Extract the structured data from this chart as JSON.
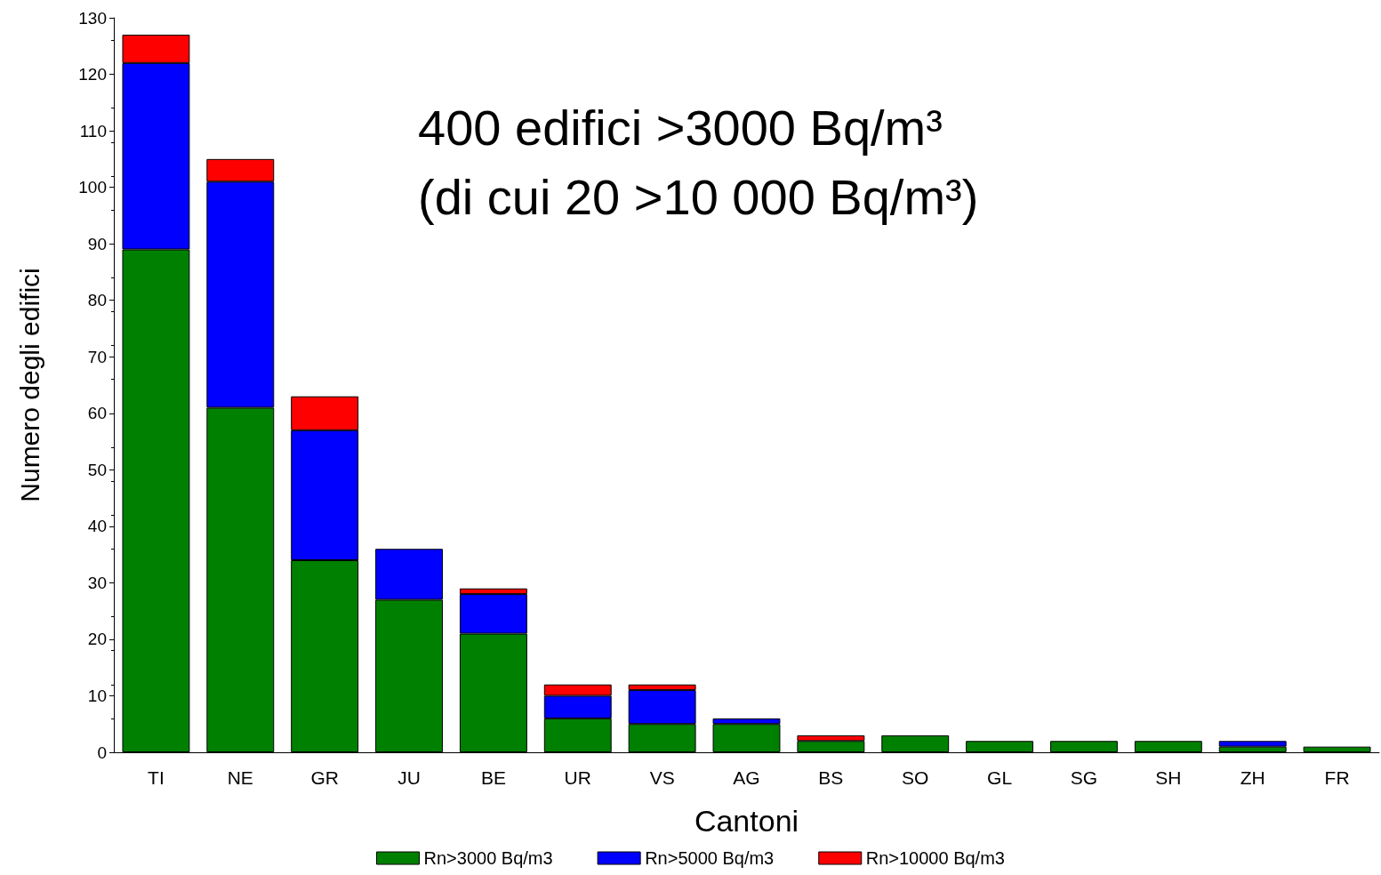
{
  "chart_data": {
    "type": "bar",
    "stacked": true,
    "xlabel": "Cantoni",
    "ylabel": "Numero degli edifici",
    "categories": [
      "TI",
      "NE",
      "GR",
      "JU",
      "BE",
      "UR",
      "VS",
      "AG",
      "BS",
      "SO",
      "GL",
      "SG",
      "SH",
      "ZH",
      "FR"
    ],
    "series": [
      {
        "name": "Rn>3000 Bq/m3",
        "color": "#008000",
        "values": [
          89,
          61,
          34,
          27,
          21,
          6,
          5,
          5,
          2,
          3,
          2,
          2,
          2,
          1,
          1
        ]
      },
      {
        "name": "Rn>5000 Bq/m3",
        "color": "#0000ff",
        "values": [
          33,
          40,
          23,
          9,
          7,
          4,
          6,
          1,
          0,
          0,
          0,
          0,
          0,
          1,
          0
        ]
      },
      {
        "name": "Rn>10000 Bq/m3",
        "color": "#ff0000",
        "values": [
          5,
          4,
          6,
          0,
          1,
          2,
          1,
          0,
          1,
          0,
          0,
          0,
          0,
          0,
          0
        ]
      }
    ],
    "ylim": [
      0,
      130
    ],
    "yticks": [
      0,
      10,
      20,
      30,
      40,
      50,
      60,
      70,
      80,
      90,
      100,
      110,
      120,
      130
    ],
    "grid": false,
    "legend": "bottom",
    "annotations": [
      "400 edifici >3000 Bq/m³",
      "(di cui 20 >10 000 Bq/m³)"
    ]
  }
}
